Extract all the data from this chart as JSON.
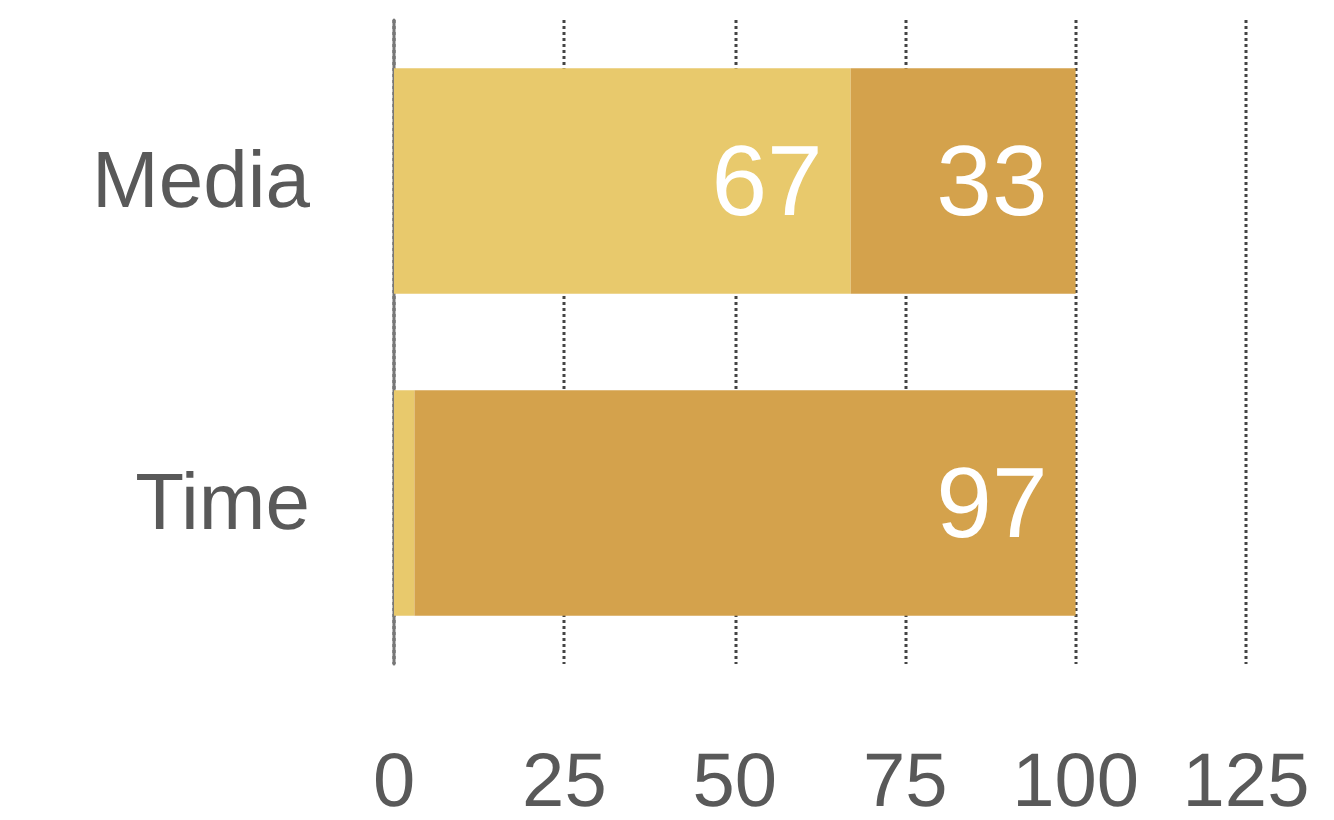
{
  "chart_data": {
    "type": "bar",
    "orientation": "horizontal",
    "stacked": true,
    "categories": [
      "Media",
      "Time"
    ],
    "series": [
      {
        "color": "#e8c96c",
        "values": [
          67,
          3
        ],
        "value_labels": [
          "67",
          null
        ]
      },
      {
        "color": "#d4a24c",
        "values": [
          33,
          97
        ],
        "value_labels": [
          "33",
          "97"
        ]
      }
    ],
    "xlim": [
      0,
      125
    ],
    "xticks": [
      0,
      25,
      50,
      75,
      100,
      125
    ],
    "grid": "x"
  }
}
